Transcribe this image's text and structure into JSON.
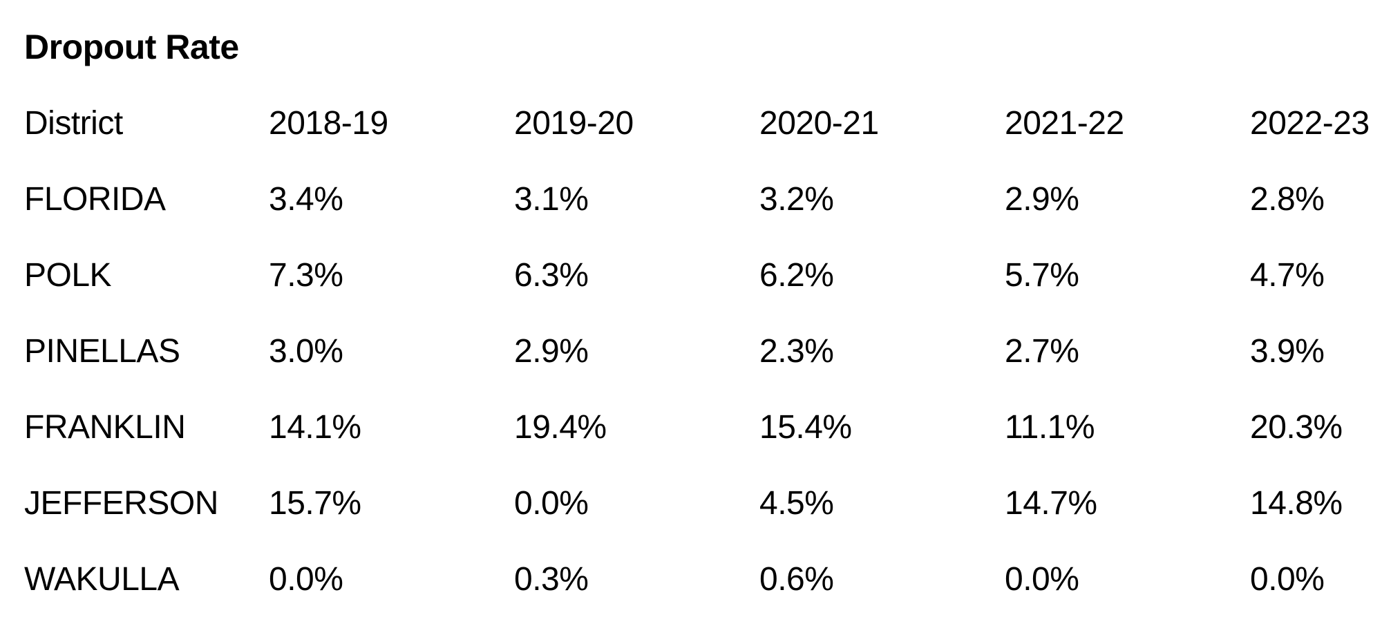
{
  "page": {
    "title": "Dropout Rate"
  },
  "table": {
    "columns": [
      "District",
      "2018-19",
      "2019-20",
      "2020-21",
      "2021-22",
      "2022-23"
    ],
    "rows": [
      {
        "district": "FLORIDA",
        "values": [
          "3.4%",
          "3.1%",
          "3.2%",
          "2.9%",
          "2.8%"
        ]
      },
      {
        "district": "POLK",
        "values": [
          "7.3%",
          "6.3%",
          "6.2%",
          "5.7%",
          "4.7%"
        ]
      },
      {
        "district": "PINELLAS",
        "values": [
          "3.0%",
          "2.9%",
          "2.3%",
          "2.7%",
          "3.9%"
        ]
      },
      {
        "district": "FRANKLIN",
        "values": [
          "14.1%",
          "19.4%",
          "15.4%",
          "11.1%",
          "20.3%"
        ]
      },
      {
        "district": "JEFFERSON",
        "values": [
          "15.7%",
          "0.0%",
          "4.5%",
          "14.7%",
          "14.8%"
        ]
      },
      {
        "district": "WAKULLA",
        "values": [
          "0.0%",
          "0.3%",
          "0.6%",
          "0.0%",
          "0.0%"
        ]
      }
    ]
  },
  "colors": {
    "background": "#ffffff",
    "text": "#000000"
  },
  "chart_data": {
    "type": "table",
    "title": "Dropout Rate",
    "categories": [
      "2018-19",
      "2019-20",
      "2020-21",
      "2021-22",
      "2022-23"
    ],
    "series": [
      {
        "name": "FLORIDA",
        "values": [
          3.4,
          3.1,
          3.2,
          2.9,
          2.8
        ]
      },
      {
        "name": "POLK",
        "values": [
          7.3,
          6.3,
          6.2,
          5.7,
          4.7
        ]
      },
      {
        "name": "PINELLAS",
        "values": [
          3.0,
          2.9,
          2.3,
          2.7,
          3.9
        ]
      },
      {
        "name": "FRANKLIN",
        "values": [
          14.1,
          19.4,
          15.4,
          11.1,
          20.3
        ]
      },
      {
        "name": "JEFFERSON",
        "values": [
          15.7,
          0.0,
          4.5,
          14.7,
          14.8
        ]
      },
      {
        "name": "WAKULLA",
        "values": [
          0.0,
          0.3,
          0.6,
          0.0,
          0.0
        ]
      }
    ],
    "unit": "percent"
  }
}
